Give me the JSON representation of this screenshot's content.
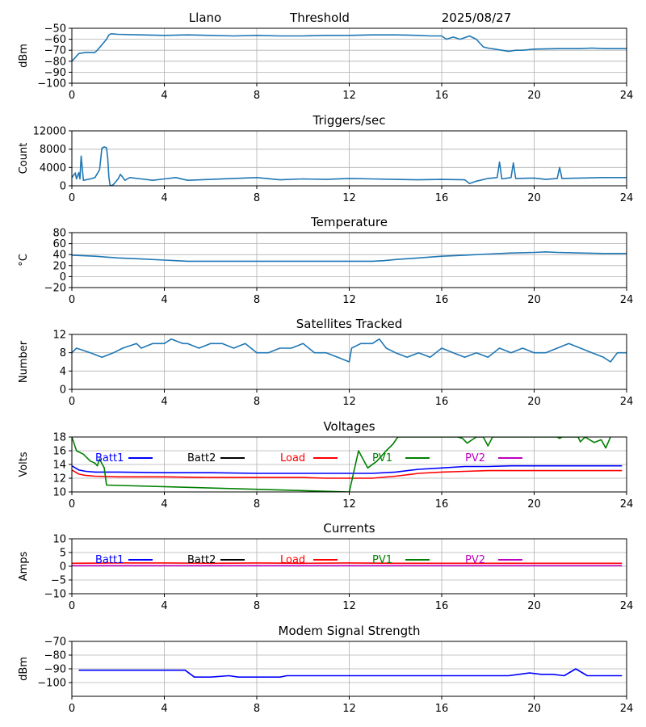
{
  "header": {
    "station": "Llano",
    "mode": "Threshold",
    "date": "2025/08/27"
  },
  "colors": {
    "default": "#1f77b4",
    "grid": "#b0b0b0",
    "Batt1": "#0000ff",
    "Batt2": "#000000",
    "Load": "#ff0000",
    "PV1": "#008000",
    "PV2": "#bf00bf"
  },
  "chart_data": [
    {
      "id": "signal",
      "type": "line",
      "title": "",
      "xlabel": "",
      "ylabel": "dBm",
      "xlim": [
        0,
        24
      ],
      "ylim": [
        -100,
        -50
      ],
      "xticks": [
        0,
        4,
        8,
        12,
        16,
        20,
        24
      ],
      "yticks": [
        -100,
        -90,
        -80,
        -70,
        -60,
        -50
      ],
      "grid": true,
      "series": [
        {
          "color": "default",
          "x": [
            0,
            0.3,
            0.6,
            1.0,
            1.1,
            1.3,
            1.5,
            1.6,
            1.7,
            2.0,
            3,
            4,
            5,
            6,
            7,
            8,
            9,
            10,
            11,
            12,
            13,
            14,
            15,
            15.5,
            16,
            16.2,
            16.5,
            16.8,
            17.2,
            17.5,
            17.8,
            18,
            18.3,
            18.6,
            18.9,
            19.2,
            19.5,
            20,
            21,
            22,
            22.5,
            23,
            23.5,
            24
          ],
          "y": [
            -80,
            -73,
            -72,
            -72,
            -70,
            -65,
            -60,
            -56,
            -55,
            -55.5,
            -56,
            -56.5,
            -56,
            -56.5,
            -57,
            -56.5,
            -57,
            -57,
            -56.5,
            -56.5,
            -56,
            -56,
            -56.5,
            -57,
            -57,
            -60,
            -58,
            -60,
            -57,
            -60,
            -67,
            -68,
            -69,
            -70,
            -71,
            -70,
            -70,
            -69,
            -68.5,
            -68.5,
            -68,
            -68.5,
            -68.5,
            -68.5
          ]
        }
      ]
    },
    {
      "id": "triggers",
      "type": "line",
      "title": "Triggers/sec",
      "xlabel": "",
      "ylabel": "Count",
      "xlim": [
        0,
        24
      ],
      "ylim": [
        0,
        12000
      ],
      "xticks": [
        0,
        4,
        8,
        12,
        16,
        20,
        24
      ],
      "yticks": [
        0,
        4000,
        8000,
        12000
      ],
      "grid": true,
      "series": [
        {
          "color": "default",
          "x": [
            0,
            0.15,
            0.2,
            0.3,
            0.35,
            0.4,
            0.5,
            0.8,
            1.0,
            1.2,
            1.3,
            1.4,
            1.5,
            1.55,
            1.6,
            1.65,
            1.7,
            1.8,
            2.0,
            2.1,
            2.3,
            2.5,
            3.0,
            3.5,
            4.0,
            4.5,
            5.0,
            6.0,
            7.0,
            8.0,
            9.0,
            10.0,
            11.0,
            12.0,
            13.0,
            14.0,
            15.0,
            16.0,
            17.0,
            17.2,
            17.5,
            18.0,
            18.4,
            18.5,
            18.6,
            19.0,
            19.1,
            19.2,
            20.0,
            20.5,
            21.0,
            21.1,
            21.2,
            22.0,
            23.0,
            24.0
          ],
          "y": [
            1800,
            2800,
            1500,
            2900,
            1500,
            6500,
            1200,
            1500,
            1800,
            3500,
            8200,
            8500,
            8300,
            6000,
            2000,
            200,
            0,
            300,
            1500,
            2500,
            1200,
            1800,
            1500,
            1200,
            1500,
            1800,
            1200,
            1400,
            1600,
            1800,
            1300,
            1500,
            1400,
            1600,
            1500,
            1400,
            1300,
            1400,
            1300,
            500,
            1000,
            1600,
            1800,
            5200,
            1500,
            1800,
            5000,
            1600,
            1700,
            1400,
            1600,
            4000,
            1600,
            1700,
            1800,
            1800
          ]
        }
      ]
    },
    {
      "id": "temperature",
      "type": "line",
      "title": "Temperature",
      "xlabel": "",
      "ylabel": "°C",
      "xlim": [
        0,
        24
      ],
      "ylim": [
        -20,
        80
      ],
      "xticks": [
        0,
        4,
        8,
        12,
        16,
        20,
        24
      ],
      "yticks": [
        -20,
        0,
        20,
        40,
        60,
        80
      ],
      "grid": true,
      "series": [
        {
          "color": "default",
          "x": [
            0,
            0.5,
            1,
            2,
            3,
            4,
            4.5,
            5,
            6,
            7,
            8,
            9,
            10,
            11,
            12,
            13,
            13.5,
            14,
            15,
            16,
            17,
            18,
            19,
            20,
            20.5,
            21,
            22,
            23,
            24
          ],
          "y": [
            39,
            38,
            37,
            34,
            32,
            30,
            29,
            28,
            28,
            28,
            28,
            28,
            28,
            28,
            28,
            28,
            29,
            31,
            34,
            37,
            39,
            41,
            43,
            44,
            45,
            44,
            43,
            42,
            42
          ]
        }
      ]
    },
    {
      "id": "satellites",
      "type": "line",
      "title": "Satellites Tracked",
      "xlabel": "",
      "ylabel": "Number",
      "xlim": [
        0,
        24
      ],
      "ylim": [
        0,
        12
      ],
      "xticks": [
        0,
        4,
        8,
        12,
        16,
        20,
        24
      ],
      "yticks": [
        0,
        4,
        8,
        12
      ],
      "grid": true,
      "series": [
        {
          "color": "default",
          "x": [
            0,
            0.2,
            0.8,
            1.3,
            1.8,
            2.2,
            2.8,
            3.0,
            3.5,
            4.0,
            4.3,
            4.8,
            5.0,
            5.5,
            6.0,
            6.5,
            7.0,
            7.5,
            8.0,
            8.5,
            9.0,
            9.5,
            10.0,
            10.5,
            11.0,
            11.5,
            12.0,
            12.1,
            12.5,
            13.0,
            13.3,
            13.6,
            14.0,
            14.5,
            15.0,
            15.5,
            16.0,
            16.5,
            17.0,
            17.5,
            18.0,
            18.5,
            19.0,
            19.5,
            20.0,
            20.5,
            21.0,
            21.5,
            22.0,
            22.5,
            23.0,
            23.3,
            23.6,
            24.0
          ],
          "y": [
            8,
            9,
            8,
            7,
            8,
            9,
            10,
            9,
            10,
            10,
            11,
            10,
            10,
            9,
            10,
            10,
            9,
            10,
            8,
            8,
            9,
            9,
            10,
            8,
            8,
            7,
            6,
            9,
            10,
            10,
            11,
            9,
            8,
            7,
            8,
            7,
            9,
            8,
            7,
            8,
            7,
            9,
            8,
            9,
            8,
            8,
            9,
            10,
            9,
            8,
            7,
            6,
            8,
            8
          ]
        }
      ]
    },
    {
      "id": "voltages",
      "type": "line",
      "title": "Voltages",
      "xlabel": "",
      "ylabel": "Volts",
      "xlim": [
        0,
        24
      ],
      "ylim": [
        10,
        18
      ],
      "xticks": [
        0,
        4,
        8,
        12,
        16,
        20,
        24
      ],
      "yticks": [
        10,
        12,
        14,
        16,
        18
      ],
      "grid": true,
      "legend": [
        "Batt1",
        "Batt2",
        "Load",
        "PV1",
        "PV2"
      ],
      "series": [
        {
          "name": "Batt1",
          "color": "Batt1",
          "x": [
            0,
            0.3,
            0.6,
            1,
            2,
            4,
            6,
            8,
            10,
            12,
            13,
            14,
            15,
            16,
            17,
            18,
            19,
            20,
            21,
            22,
            23,
            23.8
          ],
          "y": [
            13.8,
            13.2,
            13.0,
            12.9,
            12.9,
            12.8,
            12.8,
            12.7,
            12.7,
            12.7,
            12.7,
            12.9,
            13.3,
            13.5,
            13.7,
            13.7,
            13.8,
            13.8,
            13.8,
            13.8,
            13.8,
            13.8
          ]
        },
        {
          "name": "Load",
          "color": "Load",
          "x": [
            0,
            0.3,
            0.6,
            1,
            2,
            4,
            6,
            8,
            10,
            11,
            12,
            13,
            14,
            15,
            16,
            17,
            18,
            19,
            20,
            21,
            22,
            23,
            23.8
          ],
          "y": [
            13.2,
            12.6,
            12.4,
            12.3,
            12.2,
            12.2,
            12.1,
            12.1,
            12.1,
            12.0,
            12.0,
            12.0,
            12.3,
            12.7,
            12.9,
            13.0,
            13.1,
            13.1,
            13.1,
            13.1,
            13.1,
            13.1,
            13.1
          ]
        },
        {
          "name": "PV1",
          "color": "PV1",
          "x": [
            0,
            0.2,
            0.5,
            0.8,
            1.0,
            1.1,
            1.2,
            1.4,
            1.5,
            12.0,
            12.1,
            12.4,
            12.8,
            13.2,
            13.6,
            13.9,
            14.1,
            16.7,
            16.9,
            17.1,
            17.5,
            17.8,
            18.0,
            18.2,
            21.0,
            21.1,
            21.2,
            21.4,
            21.9,
            22.0,
            22.2,
            22.6,
            22.9,
            23.1,
            23.3
          ],
          "y": [
            18,
            16,
            15.5,
            14.5,
            14.2,
            13.8,
            14.8,
            13.5,
            11.0,
            10,
            11.5,
            16.0,
            13.5,
            14.5,
            16.0,
            17.0,
            18,
            18,
            17.8,
            17.1,
            18,
            18,
            16.7,
            18,
            18,
            17.8,
            18,
            18,
            18,
            17.3,
            18,
            17.2,
            17.6,
            16.4,
            18
          ]
        }
      ]
    },
    {
      "id": "currents",
      "type": "line",
      "title": "Currents",
      "xlabel": "",
      "ylabel": "Amps",
      "xlim": [
        0,
        24
      ],
      "ylim": [
        -10,
        10
      ],
      "xticks": [
        0,
        4,
        8,
        12,
        16,
        20,
        24
      ],
      "yticks": [
        -10,
        -5,
        0,
        5,
        10
      ],
      "grid": true,
      "legend": [
        "Batt1",
        "Batt2",
        "Load",
        "PV1",
        "PV2"
      ],
      "series": [
        {
          "name": "PV2",
          "color": "PV2",
          "x": [
            0,
            23.8
          ],
          "y": [
            0.2,
            0.2
          ]
        },
        {
          "name": "Load",
          "color": "Load",
          "x": [
            0,
            2,
            4,
            6,
            8,
            10,
            12,
            14,
            16,
            18,
            20,
            22,
            23.8
          ],
          "y": [
            1.1,
            1.2,
            1.2,
            1.1,
            1.2,
            1.1,
            1.2,
            1.1,
            1.1,
            1.1,
            1.1,
            1.1,
            1.1
          ]
        }
      ]
    },
    {
      "id": "modem",
      "type": "line",
      "title": "Modem Signal Strength",
      "xlabel": "",
      "ylabel": "dBm",
      "xlim": [
        0,
        24
      ],
      "ylim": [
        -110,
        -70
      ],
      "xticks": [
        0,
        4,
        8,
        12,
        16,
        20,
        24
      ],
      "yticks": [
        -100,
        -90,
        -80,
        -70
      ],
      "grid": true,
      "series": [
        {
          "color": "Batt1",
          "x": [
            0.3,
            4.9,
            5.3,
            6.0,
            6.8,
            7.2,
            8.0,
            9.0,
            9.3,
            12.0,
            16.0,
            18.9,
            19.8,
            20.3,
            20.8,
            21.3,
            21.8,
            22.3,
            22.8,
            23.8
          ],
          "y": [
            -91,
            -91,
            -96,
            -96,
            -95,
            -96,
            -96,
            -96,
            -95,
            -95,
            -95,
            -95,
            -93,
            -94,
            -94,
            -95,
            -90,
            -95,
            -95,
            -95
          ]
        }
      ]
    }
  ]
}
